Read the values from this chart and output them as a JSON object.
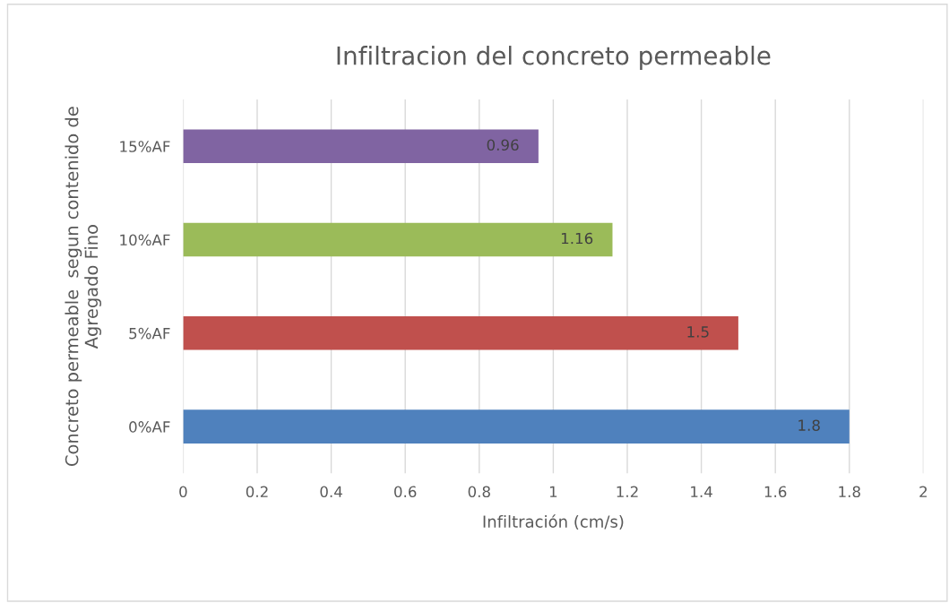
{
  "chart_data": {
    "type": "bar",
    "orientation": "horizontal",
    "title": "Infiltracion del concreto permeable",
    "xlabel": "Infiltración (cm/s)",
    "ylabel": "Concreto permeable  segun contenido de\nAgregado Fino",
    "categories": [
      "15%AF",
      "10%AF",
      "5%AF",
      "0%AF"
    ],
    "values": [
      0.96,
      1.16,
      1.5,
      1.8
    ],
    "colors": [
      "#8064a2",
      "#9bbb59",
      "#c0504d",
      "#4f81bd"
    ],
    "xlim": [
      0,
      2
    ],
    "xticks": [
      0,
      0.2,
      0.4,
      0.6,
      0.8,
      1,
      1.2,
      1.4,
      1.6,
      1.8,
      2
    ],
    "grid": "x",
    "data_labels": true
  }
}
